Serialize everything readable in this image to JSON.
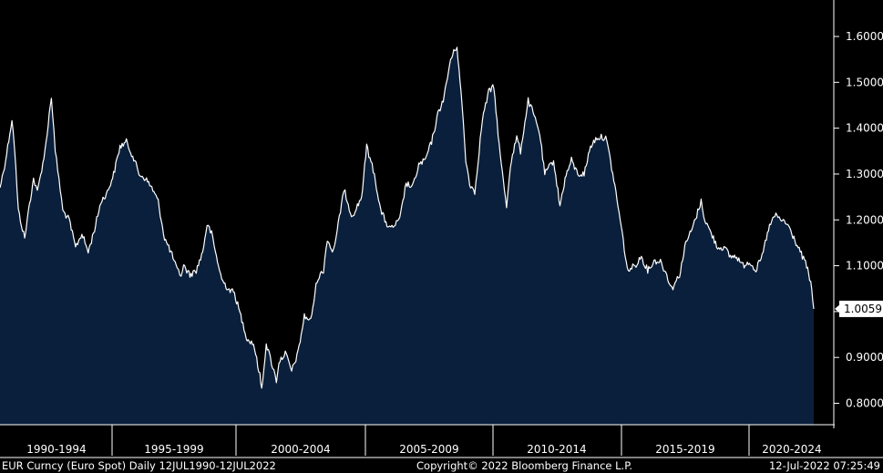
{
  "footer": {
    "left": "EUR Curncy (Euro Spot)  Daily 12JUL1990-12JUL2022",
    "center": "Copyright© 2022 Bloomberg Finance L.P.",
    "right": "12-Jul-2022 07:25:49"
  },
  "chart_data": {
    "type": "area",
    "title": "",
    "xlabel": "",
    "ylabel": "",
    "ylim": [
      0.75,
      1.65
    ],
    "xlim": [
      1990.53,
      2022.53
    ],
    "y_ticks": [
      "0.8000",
      "0.9000",
      "1.0000",
      "1.1000",
      "1.2000",
      "1.3000",
      "1.4000",
      "1.5000",
      "1.6000"
    ],
    "x_period_labels": [
      "1990-1994",
      "1995-1999",
      "2000-2004",
      "2005-2009",
      "2010-2014",
      "2015-2019",
      "2020-2024"
    ],
    "last_value_label": "1.0059",
    "last_value": 1.0059,
    "grid": false,
    "legend": "none",
    "colors": {
      "background": "#000000",
      "fill": "#0a1f3b",
      "line": "#ffffff",
      "last_label_bg": "#ffffff"
    },
    "series": [
      {
        "x": [
          1990.53,
          1990.75,
          1991.0,
          1991.1,
          1991.25,
          1991.5,
          1991.65,
          1991.85,
          1992.0,
          1992.3,
          1992.55,
          1992.7,
          1992.85,
          1993.0,
          1993.25,
          1993.5,
          1993.75,
          1994.0,
          1994.25,
          1994.5,
          1994.75,
          1995.0,
          1995.25,
          1995.5,
          1995.75,
          1996.0,
          1996.25,
          1996.5,
          1996.75,
          1997.0,
          1997.25,
          1997.5,
          1997.65,
          1997.75,
          1998.0,
          1998.25,
          1998.5,
          1998.67,
          1998.85,
          1999.0,
          1999.25,
          1999.5,
          1999.75,
          2000.0,
          2000.25,
          2000.5,
          2000.75,
          2000.82,
          2001.0,
          2001.25,
          2001.4,
          2001.5,
          2001.75,
          2002.0,
          2002.25,
          2002.5,
          2002.75,
          2003.0,
          2003.25,
          2003.4,
          2003.6,
          2003.75,
          2004.0,
          2004.1,
          2004.35,
          2004.5,
          2004.75,
          2004.95,
          2005.25,
          2005.5,
          2005.75,
          2005.9,
          2006.25,
          2006.5,
          2006.75,
          2007.0,
          2007.25,
          2007.5,
          2007.75,
          2008.0,
          2008.25,
          2008.5,
          2008.7,
          2008.85,
          2009.0,
          2009.2,
          2009.5,
          2009.75,
          2009.95,
          2010.2,
          2010.45,
          2010.6,
          2010.85,
          2011.0,
          2011.3,
          2011.45,
          2011.75,
          2011.95,
          2012.3,
          2012.55,
          2012.75,
          2013.0,
          2013.25,
          2013.5,
          2013.75,
          2014.0,
          2014.35,
          2014.5,
          2014.75,
          2015.0,
          2015.2,
          2015.5,
          2015.75,
          2016.0,
          2016.25,
          2016.5,
          2016.75,
          2016.95,
          2017.25,
          2017.5,
          2017.75,
          2018.1,
          2018.25,
          2018.5,
          2018.75,
          2019.0,
          2019.25,
          2019.5,
          2019.75,
          2020.0,
          2020.25,
          2020.5,
          2020.75,
          2021.0,
          2021.25,
          2021.5,
          2021.75,
          2022.0,
          2022.25,
          2022.45,
          2022.53
        ],
        "y": [
          1.27,
          1.33,
          1.42,
          1.36,
          1.22,
          1.16,
          1.22,
          1.29,
          1.26,
          1.35,
          1.47,
          1.35,
          1.29,
          1.22,
          1.2,
          1.14,
          1.17,
          1.13,
          1.18,
          1.24,
          1.26,
          1.3,
          1.36,
          1.37,
          1.34,
          1.3,
          1.29,
          1.27,
          1.24,
          1.16,
          1.13,
          1.09,
          1.08,
          1.1,
          1.08,
          1.09,
          1.13,
          1.19,
          1.17,
          1.13,
          1.07,
          1.05,
          1.04,
          0.99,
          0.94,
          0.93,
          0.86,
          0.83,
          0.93,
          0.88,
          0.85,
          0.89,
          0.91,
          0.87,
          0.91,
          0.99,
          0.98,
          1.07,
          1.09,
          1.16,
          1.13,
          1.16,
          1.25,
          1.26,
          1.21,
          1.22,
          1.25,
          1.36,
          1.3,
          1.22,
          1.19,
          1.18,
          1.2,
          1.28,
          1.27,
          1.32,
          1.33,
          1.37,
          1.43,
          1.47,
          1.55,
          1.58,
          1.45,
          1.33,
          1.28,
          1.26,
          1.42,
          1.48,
          1.49,
          1.34,
          1.23,
          1.32,
          1.38,
          1.35,
          1.46,
          1.44,
          1.39,
          1.3,
          1.33,
          1.23,
          1.29,
          1.33,
          1.3,
          1.3,
          1.36,
          1.38,
          1.38,
          1.34,
          1.26,
          1.17,
          1.09,
          1.1,
          1.12,
          1.09,
          1.11,
          1.11,
          1.08,
          1.05,
          1.08,
          1.15,
          1.18,
          1.24,
          1.2,
          1.17,
          1.14,
          1.14,
          1.12,
          1.12,
          1.1,
          1.11,
          1.09,
          1.12,
          1.18,
          1.21,
          1.2,
          1.19,
          1.16,
          1.13,
          1.1,
          1.05,
          1.0059
        ]
      }
    ]
  }
}
